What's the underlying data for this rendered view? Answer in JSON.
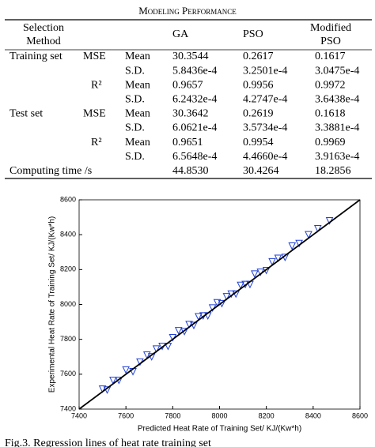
{
  "table": {
    "caption": "Modeling Performance",
    "header": {
      "method": "Selection Method",
      "columns": [
        "GA",
        "PSO",
        "Modified PSO"
      ]
    },
    "rows": [
      {
        "group": "Training set",
        "metric": "MSE",
        "stat": "Mean",
        "values": [
          "30.3544",
          "0.2617",
          "0.1617"
        ]
      },
      {
        "stat": "S.D.",
        "values": [
          "5.8436e-4",
          "3.2501e-4",
          "3.0475e-4"
        ]
      },
      {
        "metric": "R²",
        "stat": "Mean",
        "values": [
          "0.9657",
          "0.9956",
          "0.9972"
        ]
      },
      {
        "stat": "S.D.",
        "values": [
          "6.2432e-4",
          "4.2747e-4",
          "3.6438e-4"
        ]
      },
      {
        "group": "Test set",
        "metric": "MSE",
        "stat": "Mean",
        "values": [
          "30.3642",
          "0.2619",
          "0.1618"
        ]
      },
      {
        "stat": "S.D.",
        "values": [
          "6.0621e-4",
          "3.5734e-4",
          "3.3881e-4"
        ]
      },
      {
        "metric": "R²",
        "stat": "Mean",
        "values": [
          "0.9651",
          "0.9954",
          "0.9969"
        ]
      },
      {
        "stat": "S.D.",
        "values": [
          "6.5648e-4",
          "4.4660e-4",
          "3.9163e-4"
        ]
      },
      {
        "group": "Computing time /s",
        "values": [
          "44.8530",
          "30.4264",
          "18.2856"
        ]
      }
    ]
  },
  "chart_data": {
    "type": "scatter",
    "xlabel": "Predicted Heat Rate of Training Set/ KJ/(Kw*h)",
    "ylabel": "Experimental Heat Rate of Training Set/ KJ/(Kw*h)",
    "xlim": [
      7400,
      8600
    ],
    "ylim": [
      7400,
      8600
    ],
    "xticks": [
      7400,
      7600,
      7800,
      8000,
      8200,
      8400,
      8600
    ],
    "yticks": [
      7400,
      7600,
      7800,
      8000,
      8200,
      8400,
      8600
    ],
    "series": [
      {
        "color": "#1f3fd8",
        "x": [
          7500,
          7520,
          7545,
          7570,
          7600,
          7630,
          7660,
          7690,
          7710,
          7730,
          7755,
          7780,
          7800,
          7825,
          7850,
          7870,
          7890,
          7910,
          7930,
          7950,
          7970,
          7990,
          8010,
          8030,
          8050,
          8070,
          8090,
          8110,
          8130,
          8150,
          8175,
          8200,
          8225,
          8250,
          8280,
          8310,
          8340,
          8380,
          8420,
          8470
        ],
        "values": [
          7515,
          7510,
          7565,
          7565,
          7625,
          7615,
          7670,
          7710,
          7700,
          7745,
          7760,
          7760,
          7810,
          7850,
          7845,
          7885,
          7880,
          7930,
          7935,
          7935,
          7980,
          8010,
          8005,
          8045,
          8060,
          8060,
          8110,
          8115,
          8115,
          8175,
          8185,
          8195,
          8245,
          8265,
          8270,
          8335,
          8350,
          8400,
          8435,
          8480
        ]
      }
    ],
    "line": {
      "color": "#000000",
      "x": [
        7400,
        8600
      ],
      "values": [
        7400,
        8600
      ]
    },
    "caption": "Fig.3. Regression lines of heat rate training set"
  }
}
